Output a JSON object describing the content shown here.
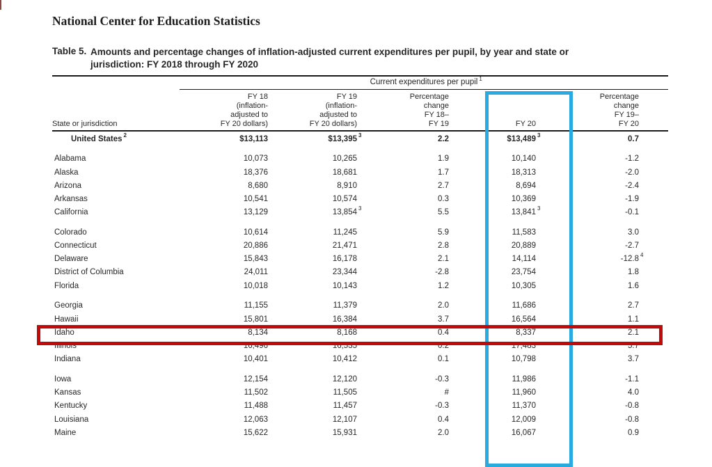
{
  "page": {
    "org_title": "National Center for Education Statistics"
  },
  "table": {
    "label": "Table 5.",
    "title": "Amounts and percentage changes of inflation-adjusted current expenditures per pupil, by year and state or\njurisdiction: FY 2018 through FY 2020",
    "spanner": "Current expenditures per pupil^1",
    "columns": [
      "State or jurisdiction",
      "FY 18\n(inflation-\nadjusted to\nFY 20 dollars)",
      "FY 19\n(inflation-\nadjusted to\nFY 20 dollars)",
      "Percentage\nchange\nFY 18–\nFY 19",
      "FY 20",
      "Percentage\nchange\nFY 19–\nFY 20"
    ],
    "groups": [
      [
        [
          "United States^2",
          "$13,113",
          "$13,395^3",
          "2.2",
          "$13,489^3",
          "0.7"
        ]
      ],
      [
        [
          "Alabama",
          "10,073",
          "10,265",
          "1.9",
          "10,140",
          "-1.2"
        ],
        [
          "Alaska",
          "18,376",
          "18,681",
          "1.7",
          "18,313",
          "-2.0"
        ],
        [
          "Arizona",
          "8,680",
          "8,910",
          "2.7",
          "8,694",
          "-2.4"
        ],
        [
          "Arkansas",
          "10,541",
          "10,574",
          "0.3",
          "10,369",
          "-1.9"
        ],
        [
          "California",
          "13,129",
          "13,854^3",
          "5.5",
          "13,841^3",
          "-0.1"
        ]
      ],
      [
        [
          "Colorado",
          "10,614",
          "11,245",
          "5.9",
          "11,583",
          "3.0"
        ],
        [
          "Connecticut",
          "20,886",
          "21,471",
          "2.8",
          "20,889",
          "-2.7"
        ],
        [
          "Delaware",
          "15,843",
          "16,178",
          "2.1",
          "14,114",
          "-12.8^4"
        ],
        [
          "District of Columbia",
          "24,011",
          "23,344",
          "-2.8",
          "23,754",
          "1.8"
        ],
        [
          "Florida",
          "10,018",
          "10,143",
          "1.2",
          "10,305",
          "1.6"
        ]
      ],
      [
        [
          "Georgia",
          "11,155",
          "11,379",
          "2.0",
          "11,686",
          "2.7"
        ],
        [
          "Hawaii",
          "15,801",
          "16,384",
          "3.7",
          "16,564",
          "1.1"
        ],
        [
          "Idaho",
          "8,134",
          "8,168",
          "0.4",
          "8,337",
          "2.1"
        ],
        [
          "Illinois",
          "16,496",
          "16,535",
          "0.2",
          "17,483",
          "5.7"
        ],
        [
          "Indiana",
          "10,401",
          "10,412",
          "0.1",
          "10,798",
          "3.7"
        ]
      ],
      [
        [
          "Iowa",
          "12,154",
          "12,120",
          "-0.3",
          "11,986",
          "-1.1"
        ],
        [
          "Kansas",
          "11,502",
          "11,505",
          "#",
          "11,960",
          "4.0"
        ],
        [
          "Kentucky",
          "11,488",
          "11,457",
          "-0.3",
          "11,370",
          "-0.8"
        ],
        [
          "Louisiana",
          "12,063",
          "12,107",
          "0.4",
          "12,009",
          "-0.8"
        ],
        [
          "Maine",
          "15,622",
          "15,931",
          "2.0",
          "16,067",
          "0.9"
        ]
      ]
    ]
  },
  "annotations": {
    "highlighted_column": "FY 20",
    "column_highlight_color": "#29ABE2",
    "highlighted_row": "Idaho",
    "row_highlight_color": "#C00B0B"
  }
}
